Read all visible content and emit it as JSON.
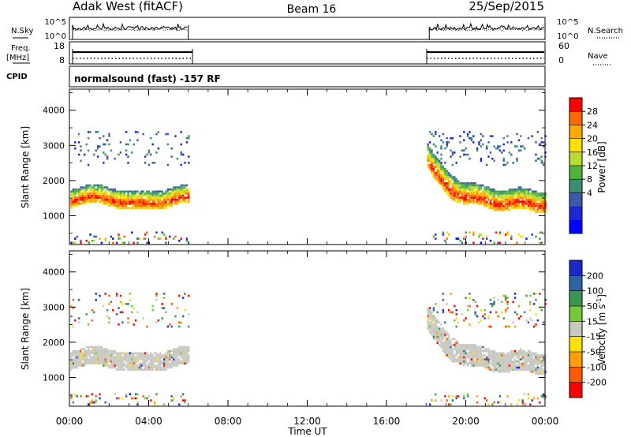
{
  "header": {
    "station": "Adak West (fitACF)",
    "beam": "Beam 16",
    "date": "25/Sep/2015"
  },
  "panels": {
    "nsky": {
      "left_label": "N.Sky",
      "right_label": "N.Search",
      "left_ticks": [
        "10^5",
        "10^0"
      ],
      "right_ticks": [
        "10^5",
        "10^0"
      ]
    },
    "freq": {
      "left_label_1": "Freq.",
      "left_label_2": "[MHz]",
      "right_label": "Nave",
      "left_ticks": [
        "18",
        "8"
      ],
      "right_ticks": [
        "60",
        "0"
      ]
    },
    "cpid": {
      "label": "CPID",
      "text": "normalsound (fast) -157 RF"
    }
  },
  "power_colorbar": {
    "label": "Power [dB]",
    "ticks": [
      "28",
      "24",
      "20",
      "16",
      "12",
      "8",
      "4"
    ],
    "colors": [
      "#ff0000",
      "#ff6a00",
      "#ffaa00",
      "#ffe000",
      "#b4dc32",
      "#50b43c",
      "#3c8c78",
      "#3c5aaa",
      "#1e28d2",
      "#0000ff"
    ]
  },
  "velocity_colorbar": {
    "label": "Velocity [m s^-1]",
    "ticks": [
      "200",
      "100",
      "50",
      "15",
      "-15",
      "-50",
      "-100",
      "-200"
    ],
    "colors": [
      "#1e28c8",
      "#2e64a0",
      "#3c9650",
      "#78c83c",
      "#c8c8c0",
      "#ffe000",
      "#ffa000",
      "#ff5a00",
      "#ff0000"
    ]
  },
  "chart_data": [
    {
      "type": "heatmap",
      "name": "power",
      "xlabel": "",
      "ylabel": "Slant Range [km]",
      "x_ticks": [
        "00:00",
        "04:00",
        "08:00",
        "12:00",
        "16:00",
        "20:00",
        "00:00"
      ],
      "y_ticks": [
        1000,
        2000,
        3000,
        4000
      ],
      "xlim": [
        0,
        24
      ],
      "ylim": [
        180,
        4600
      ],
      "colorbar_label": "Power [dB]",
      "data_intervals_ut": [
        [
          0,
          6
        ],
        [
          18,
          24
        ]
      ],
      "main_echo_band_km": {
        "0-6": [
          1300,
          1900
        ],
        "18-24": [
          1200,
          2300
        ]
      },
      "max_power_db": 30
    },
    {
      "type": "heatmap",
      "name": "velocity",
      "xlabel": "Time UT",
      "ylabel": "Slant Range [km]",
      "x_ticks": [
        "00:00",
        "04:00",
        "08:00",
        "12:00",
        "16:00",
        "20:00",
        "00:00"
      ],
      "y_ticks": [
        1000,
        2000,
        3000,
        4000
      ],
      "xlim": [
        0,
        24
      ],
      "ylim": [
        180,
        4600
      ],
      "colorbar_label": "Velocity [m s^-1]",
      "data_intervals_ut": [
        [
          0,
          6
        ],
        [
          18,
          24
        ]
      ]
    }
  ]
}
